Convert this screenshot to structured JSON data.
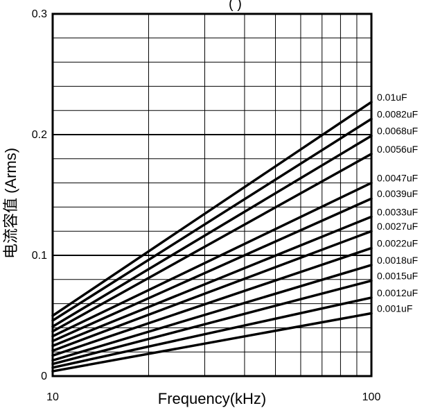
{
  "chart_data": {
    "type": "line",
    "title": "",
    "top_partial_text": "(         )",
    "xlabel": "Frequency(kHz)",
    "ylabel": "电流容值 (Arms)",
    "x_scale": "log",
    "xlim": [
      10,
      100
    ],
    "ylim": [
      0,
      0.3
    ],
    "grid": true,
    "x_ticks": [
      {
        "value": 10,
        "label": "10"
      },
      {
        "value": 100,
        "label": "100"
      }
    ],
    "y_ticks": [
      {
        "value": 0,
        "label": "0"
      },
      {
        "value": 0.1,
        "label": "0.1"
      },
      {
        "value": 0.2,
        "label": "0.2"
      },
      {
        "value": 0.3,
        "label": "0.3"
      }
    ],
    "series": [
      {
        "name": "0.01uF",
        "x": [
          10,
          100
        ],
        "y": [
          0.05,
          0.227
        ]
      },
      {
        "name": "0.0082uF",
        "x": [
          10,
          100
        ],
        "y": [
          0.046,
          0.213
        ]
      },
      {
        "name": "0.0068uF",
        "x": [
          10,
          100
        ],
        "y": [
          0.041,
          0.199
        ]
      },
      {
        "name": "0.0056uF",
        "x": [
          10,
          100
        ],
        "y": [
          0.037,
          0.184
        ]
      },
      {
        "name": "0.0047uF",
        "x": [
          10,
          100
        ],
        "y": [
          0.033,
          0.16
        ]
      },
      {
        "name": "0.0039uF",
        "x": [
          10,
          100
        ],
        "y": [
          0.029,
          0.147
        ]
      },
      {
        "name": "0.0033uF",
        "x": [
          10,
          100
        ],
        "y": [
          0.025,
          0.132
        ]
      },
      {
        "name": "0.0027uF",
        "x": [
          10,
          100
        ],
        "y": [
          0.021,
          0.12
        ]
      },
      {
        "name": "0.0022uF",
        "x": [
          10,
          100
        ],
        "y": [
          0.017,
          0.106
        ]
      },
      {
        "name": "0.0018uF",
        "x": [
          10,
          100
        ],
        "y": [
          0.013,
          0.092
        ]
      },
      {
        "name": "0.0015uF",
        "x": [
          10,
          100
        ],
        "y": [
          0.01,
          0.079
        ]
      },
      {
        "name": "0.0012uF",
        "x": [
          10,
          100
        ],
        "y": [
          0.007,
          0.065
        ]
      },
      {
        "name": "0.001uF",
        "x": [
          10,
          100
        ],
        "y": [
          0.004,
          0.052
        ]
      }
    ]
  }
}
